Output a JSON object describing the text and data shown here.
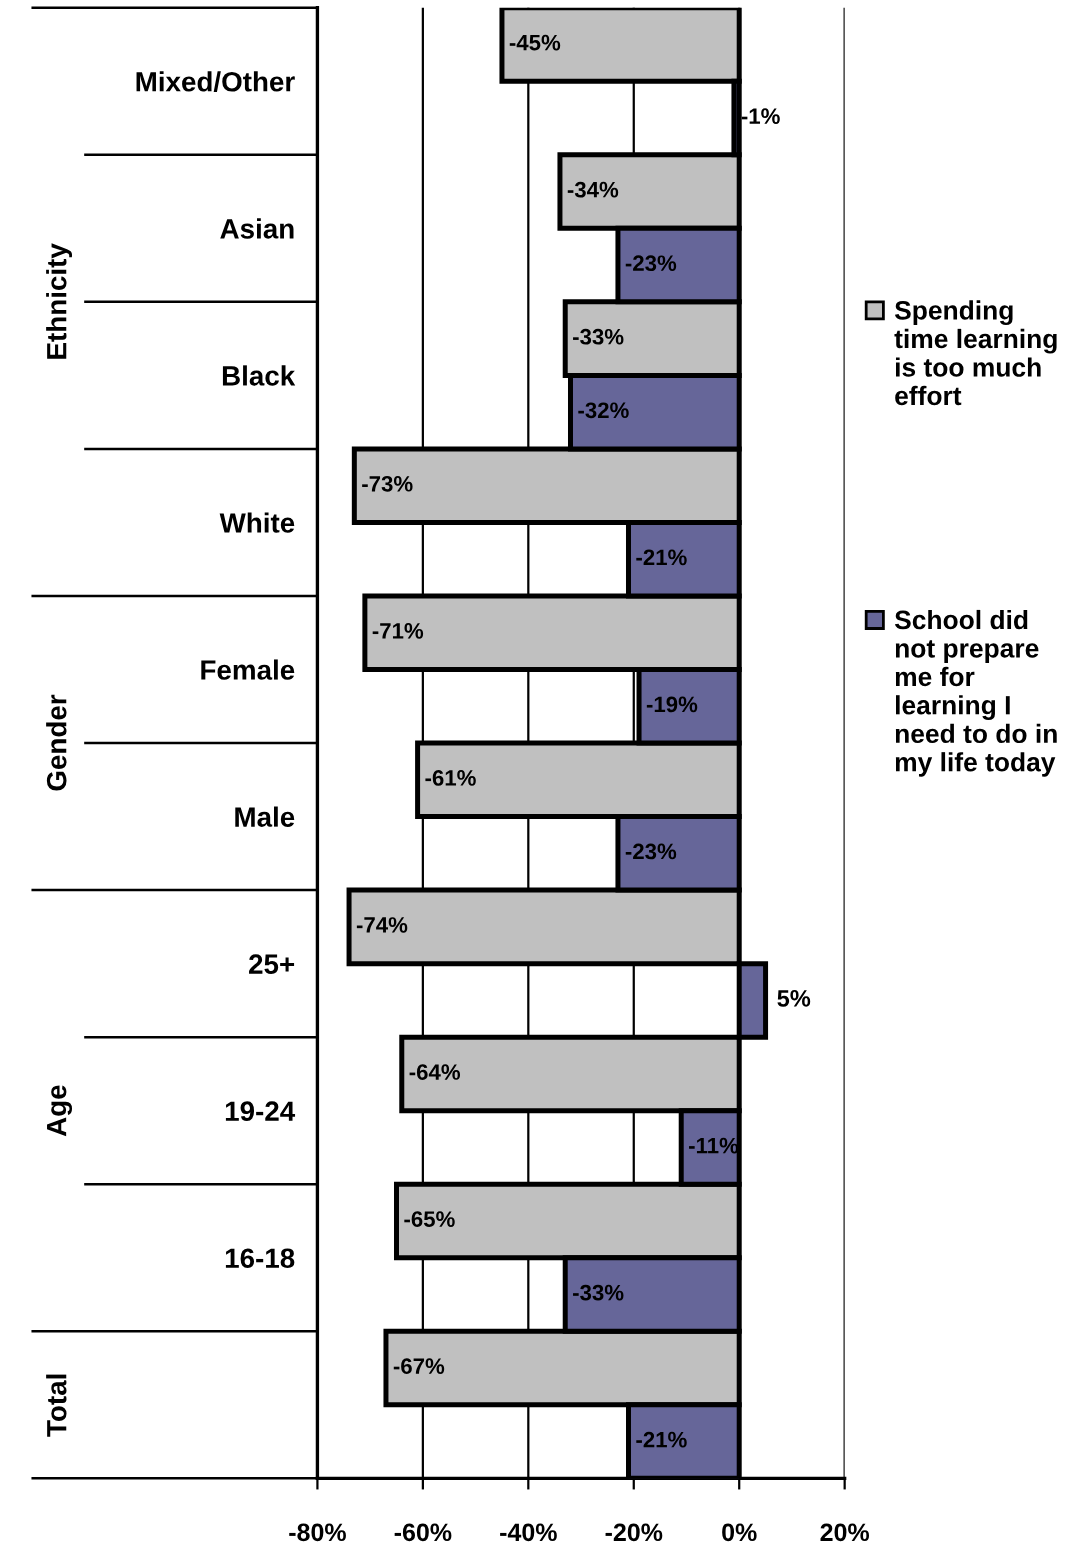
{
  "chart_data": {
    "type": "bar",
    "orientation": "horizontal",
    "categories": [
      "Mixed/Other",
      "Asian",
      "Black",
      "White",
      "Female",
      "Male",
      "25+",
      "19-24",
      "16-18",
      null
    ],
    "series": [
      {
        "name": "Spending time learning is too much effort",
        "color": "#c0c0c0",
        "values": [
          -45,
          -34,
          -33,
          -73,
          -71,
          -61,
          -74,
          -64,
          -65,
          -67
        ],
        "value_labels": [
          "-45%",
          "-34%",
          "-33%",
          "-73%",
          "-71%",
          "-61%",
          "-74%",
          "-64%",
          "-65%",
          "-67%"
        ]
      },
      {
        "name": "School did not prepare me for learning I need to do in my life today",
        "color": "#666699",
        "values": [
          -1,
          -23,
          -32,
          -21,
          -19,
          -23,
          5,
          -11,
          -33,
          -21
        ],
        "value_labels": [
          "-1%",
          "-23%",
          "-32%",
          "-21%",
          "-19%",
          "-23%",
          "5%",
          "-11%",
          "-33%",
          "-21%"
        ]
      }
    ],
    "xlim": [
      -80,
      20
    ],
    "xticks": [
      {
        "value": -80,
        "label": "-80%"
      },
      {
        "value": -60,
        "label": "-60%"
      },
      {
        "value": -40,
        "label": "-40%"
      },
      {
        "value": -20,
        "label": "-20%"
      },
      {
        "value": 0,
        "label": "0%"
      },
      {
        "value": 20,
        "label": "20%"
      }
    ],
    "grid": "x",
    "legend": "right",
    "annotations": [
      "Ethnicity",
      "Gender",
      "Age",
      "Total"
    ]
  }
}
